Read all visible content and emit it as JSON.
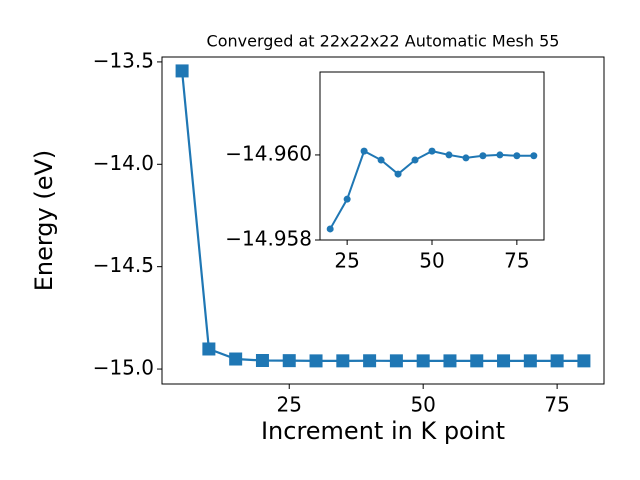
{
  "chart_data": [
    {
      "type": "line",
      "title": "Converged at 22x22x22 Automatic Mesh 55",
      "xlabel": "Increment in K point",
      "ylabel": "Energy (eV)",
      "x": [
        5,
        10,
        15,
        20,
        25,
        30,
        35,
        40,
        45,
        50,
        55,
        60,
        65,
        70,
        75,
        80
      ],
      "series": [
        {
          "name": "Energy",
          "color": "#1f77b4",
          "marker": "square",
          "values": [
            -13.544,
            -14.902,
            -14.951,
            -14.95826,
            -14.95896,
            -14.96009,
            -14.95988,
            -14.95955,
            -14.95988,
            -14.96009,
            -14.96,
            -14.95993,
            -14.95998,
            -14.96,
            -14.95998,
            -14.95998
          ]
        }
      ],
      "xlim": [
        1.25,
        83.75
      ],
      "ylim": [
        -15.073,
        -13.476
      ],
      "xticks": [
        25,
        50,
        75
      ],
      "yticks": [
        {
          "value": -13.5,
          "label": "−13.5"
        },
        {
          "value": -14.0,
          "label": "−14.0"
        },
        {
          "value": -14.5,
          "label": "−14.5"
        },
        {
          "value": -15.0,
          "label": "−15.0"
        }
      ]
    },
    {
      "type": "line",
      "x": [
        20,
        25,
        30,
        35,
        40,
        45,
        50,
        55,
        60,
        65,
        70,
        75,
        80
      ],
      "series": [
        {
          "name": "Energy",
          "color": "#1f77b4",
          "marker": "circle",
          "values": [
            -14.95826,
            -14.95896,
            -14.96009,
            -14.95988,
            -14.95955,
            -14.95988,
            -14.96009,
            -14.96,
            -14.95993,
            -14.95998,
            -14.96,
            -14.95998,
            -14.95998
          ]
        }
      ],
      "xlim": [
        17,
        83
      ],
      "ylim": [
        -14.958,
        -14.96195
      ],
      "xticks": [
        25,
        50,
        75
      ],
      "yticks": [
        {
          "value": -14.96,
          "label": "−14.960"
        },
        {
          "value": -14.958,
          "label": "−14.958"
        }
      ]
    }
  ]
}
